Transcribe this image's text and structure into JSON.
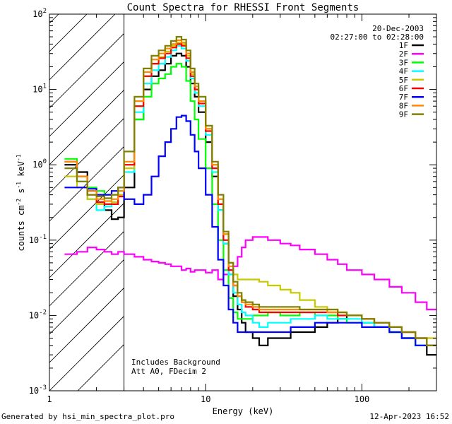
{
  "chart_data": {
    "type": "line",
    "title": "Count Spectra for RHESSI Front Segments",
    "xlabel": "Energy (keV)",
    "ylabel_parts": {
      "a": "counts cm",
      "b": "-2",
      "c": " s",
      "d": "-1",
      "e": " keV",
      "f": "-1"
    },
    "xscale": "log",
    "yscale": "log",
    "xlim": [
      1,
      300
    ],
    "ylim": [
      0.001,
      100
    ],
    "x_ticks": [
      {
        "v": 1,
        "label": "1"
      },
      {
        "v": 10,
        "label": "10"
      },
      {
        "v": 100,
        "label": "100"
      }
    ],
    "y_ticks": [
      {
        "v": 0.001,
        "b": "10",
        "e": "-3"
      },
      {
        "v": 0.01,
        "b": "10",
        "e": "-2"
      },
      {
        "v": 0.1,
        "b": "10",
        "e": "-1"
      },
      {
        "v": 1,
        "b": "10",
        "e": "0"
      },
      {
        "v": 10,
        "b": "10",
        "e": "1"
      },
      {
        "v": 100,
        "b": "10",
        "e": "2"
      }
    ],
    "hatched_region_xmax": 3,
    "date": "20-Dec-2003",
    "time_range": "02:27:00 to 02:28:00",
    "annotation_lines": [
      "Includes Background",
      "Att A0, FDecim 2"
    ],
    "legend_position": "top-right",
    "x_energy": [
      1.25,
      1.5,
      1.75,
      2,
      2.25,
      2.5,
      2.75,
      3,
      3.5,
      4,
      4.5,
      5,
      5.5,
      6,
      6.5,
      7,
      7.5,
      8,
      8.5,
      9,
      10,
      11,
      12,
      13,
      14,
      15,
      16,
      17,
      18,
      20,
      22,
      25,
      30,
      35,
      40,
      50,
      60,
      70,
      80,
      100,
      120,
      150,
      180,
      220,
      260,
      300
    ],
    "series": [
      {
        "name": "1F",
        "color": "#000000",
        "values": [
          1.0,
          0.8,
          0.45,
          0.3,
          0.25,
          0.19,
          0.2,
          0.5,
          4,
          10,
          15,
          18,
          22,
          28,
          30,
          28,
          20,
          12,
          8,
          5,
          2,
          0.7,
          0.25,
          0.09,
          0.035,
          0.018,
          0.012,
          0.008,
          0.006,
          0.005,
          0.004,
          0.005,
          0.005,
          0.006,
          0.006,
          0.007,
          0.008,
          0.009,
          0.01,
          0.008,
          0.007,
          0.006,
          0.005,
          0.004,
          0.003,
          0.003
        ]
      },
      {
        "name": "2F",
        "color": "#ff00ff",
        "values": [
          0.065,
          0.07,
          0.08,
          0.075,
          0.07,
          0.065,
          0.07,
          0.065,
          0.06,
          0.055,
          0.052,
          0.05,
          0.048,
          0.045,
          0.045,
          0.04,
          0.042,
          0.038,
          0.04,
          0.04,
          0.037,
          0.04,
          0.03,
          0.035,
          0.04,
          0.045,
          0.06,
          0.08,
          0.1,
          0.11,
          0.11,
          0.1,
          0.09,
          0.085,
          0.075,
          0.065,
          0.055,
          0.048,
          0.04,
          0.035,
          0.03,
          0.024,
          0.02,
          0.015,
          0.012,
          0.009
        ]
      },
      {
        "name": "3F",
        "color": "#00ff00",
        "values": [
          1.2,
          0.7,
          0.5,
          0.45,
          0.4,
          0.4,
          0.45,
          1.0,
          4,
          8,
          12,
          14,
          16,
          20,
          22,
          20,
          13,
          7,
          4,
          2.2,
          0.9,
          0.3,
          0.1,
          0.04,
          0.017,
          0.011,
          0.009,
          0.009,
          0.009,
          0.01,
          0.01,
          0.011,
          0.01,
          0.01,
          0.011,
          0.01,
          0.01,
          0.009,
          0.008,
          0.008,
          0.007,
          0.006,
          0.005,
          0.004,
          0.004,
          0.003
        ]
      },
      {
        "name": "4F",
        "color": "#00ffff",
        "values": [
          1.1,
          0.6,
          0.35,
          0.25,
          0.28,
          0.3,
          0.38,
          0.8,
          5,
          12,
          18,
          22,
          27,
          33,
          38,
          35,
          24,
          14,
          9,
          6,
          2.5,
          0.8,
          0.25,
          0.09,
          0.035,
          0.02,
          0.014,
          0.011,
          0.01,
          0.008,
          0.007,
          0.008,
          0.008,
          0.009,
          0.009,
          0.01,
          0.009,
          0.009,
          0.009,
          0.008,
          0.007,
          0.006,
          0.005,
          0.004,
          0.004,
          0.003
        ]
      },
      {
        "name": "5F",
        "color": "#c8c800",
        "values": [
          0.7,
          0.5,
          0.35,
          0.3,
          0.3,
          0.32,
          0.4,
          0.9,
          6,
          15,
          22,
          27,
          32,
          38,
          42,
          40,
          28,
          16,
          10,
          7,
          3,
          1,
          0.35,
          0.12,
          0.05,
          0.035,
          0.03,
          0.03,
          0.03,
          0.03,
          0.028,
          0.025,
          0.022,
          0.02,
          0.016,
          0.013,
          0.012,
          0.011,
          0.01,
          0.009,
          0.008,
          0.007,
          0.006,
          0.005,
          0.005,
          0.004
        ]
      },
      {
        "name": "6F",
        "color": "#ff0000",
        "values": [
          1.1,
          0.7,
          0.4,
          0.32,
          0.3,
          0.3,
          0.38,
          1.0,
          6,
          15,
          22,
          26,
          30,
          36,
          40,
          38,
          26,
          15,
          10,
          6.5,
          2.8,
          0.9,
          0.3,
          0.1,
          0.04,
          0.025,
          0.018,
          0.015,
          0.013,
          0.012,
          0.011,
          0.011,
          0.011,
          0.011,
          0.011,
          0.011,
          0.011,
          0.01,
          0.01,
          0.009,
          0.008,
          0.007,
          0.006,
          0.005,
          0.004,
          0.003
        ]
      },
      {
        "name": "7F",
        "color": "#0000ff",
        "values": [
          0.5,
          0.5,
          0.48,
          0.4,
          0.4,
          0.45,
          0.5,
          0.35,
          0.3,
          0.4,
          0.7,
          1.3,
          2.0,
          3.0,
          4.3,
          4.5,
          3.8,
          2.5,
          1.5,
          0.9,
          0.4,
          0.15,
          0.055,
          0.025,
          0.012,
          0.008,
          0.006,
          0.006,
          0.006,
          0.006,
          0.006,
          0.006,
          0.006,
          0.007,
          0.007,
          0.008,
          0.008,
          0.008,
          0.008,
          0.007,
          0.007,
          0.006,
          0.005,
          0.004,
          0.004,
          0.003
        ]
      },
      {
        "name": "8F",
        "color": "#ff8800",
        "values": [
          1.1,
          0.7,
          0.45,
          0.35,
          0.33,
          0.35,
          0.45,
          1.1,
          7,
          17,
          25,
          30,
          35,
          40,
          45,
          42,
          30,
          17,
          11,
          7,
          3,
          1,
          0.35,
          0.12,
          0.045,
          0.025,
          0.018,
          0.015,
          0.014,
          0.013,
          0.012,
          0.012,
          0.012,
          0.012,
          0.012,
          0.012,
          0.011,
          0.011,
          0.01,
          0.009,
          0.008,
          0.007,
          0.006,
          0.005,
          0.004,
          0.003
        ]
      },
      {
        "name": "9F",
        "color": "#808000",
        "values": [
          0.9,
          0.6,
          0.4,
          0.38,
          0.36,
          0.4,
          0.5,
          1.5,
          8,
          19,
          28,
          33,
          38,
          44,
          50,
          46,
          33,
          19,
          12,
          8,
          3.3,
          1.1,
          0.4,
          0.13,
          0.05,
          0.028,
          0.02,
          0.016,
          0.015,
          0.014,
          0.013,
          0.013,
          0.013,
          0.013,
          0.012,
          0.012,
          0.012,
          0.011,
          0.01,
          0.009,
          0.008,
          0.007,
          0.006,
          0.005,
          0.004,
          0.003
        ]
      }
    ]
  },
  "footer": {
    "generated_by": "Generated by hsi_min_spectra_plot.pro",
    "timestamp": "12-Apr-2023 16:52"
  }
}
